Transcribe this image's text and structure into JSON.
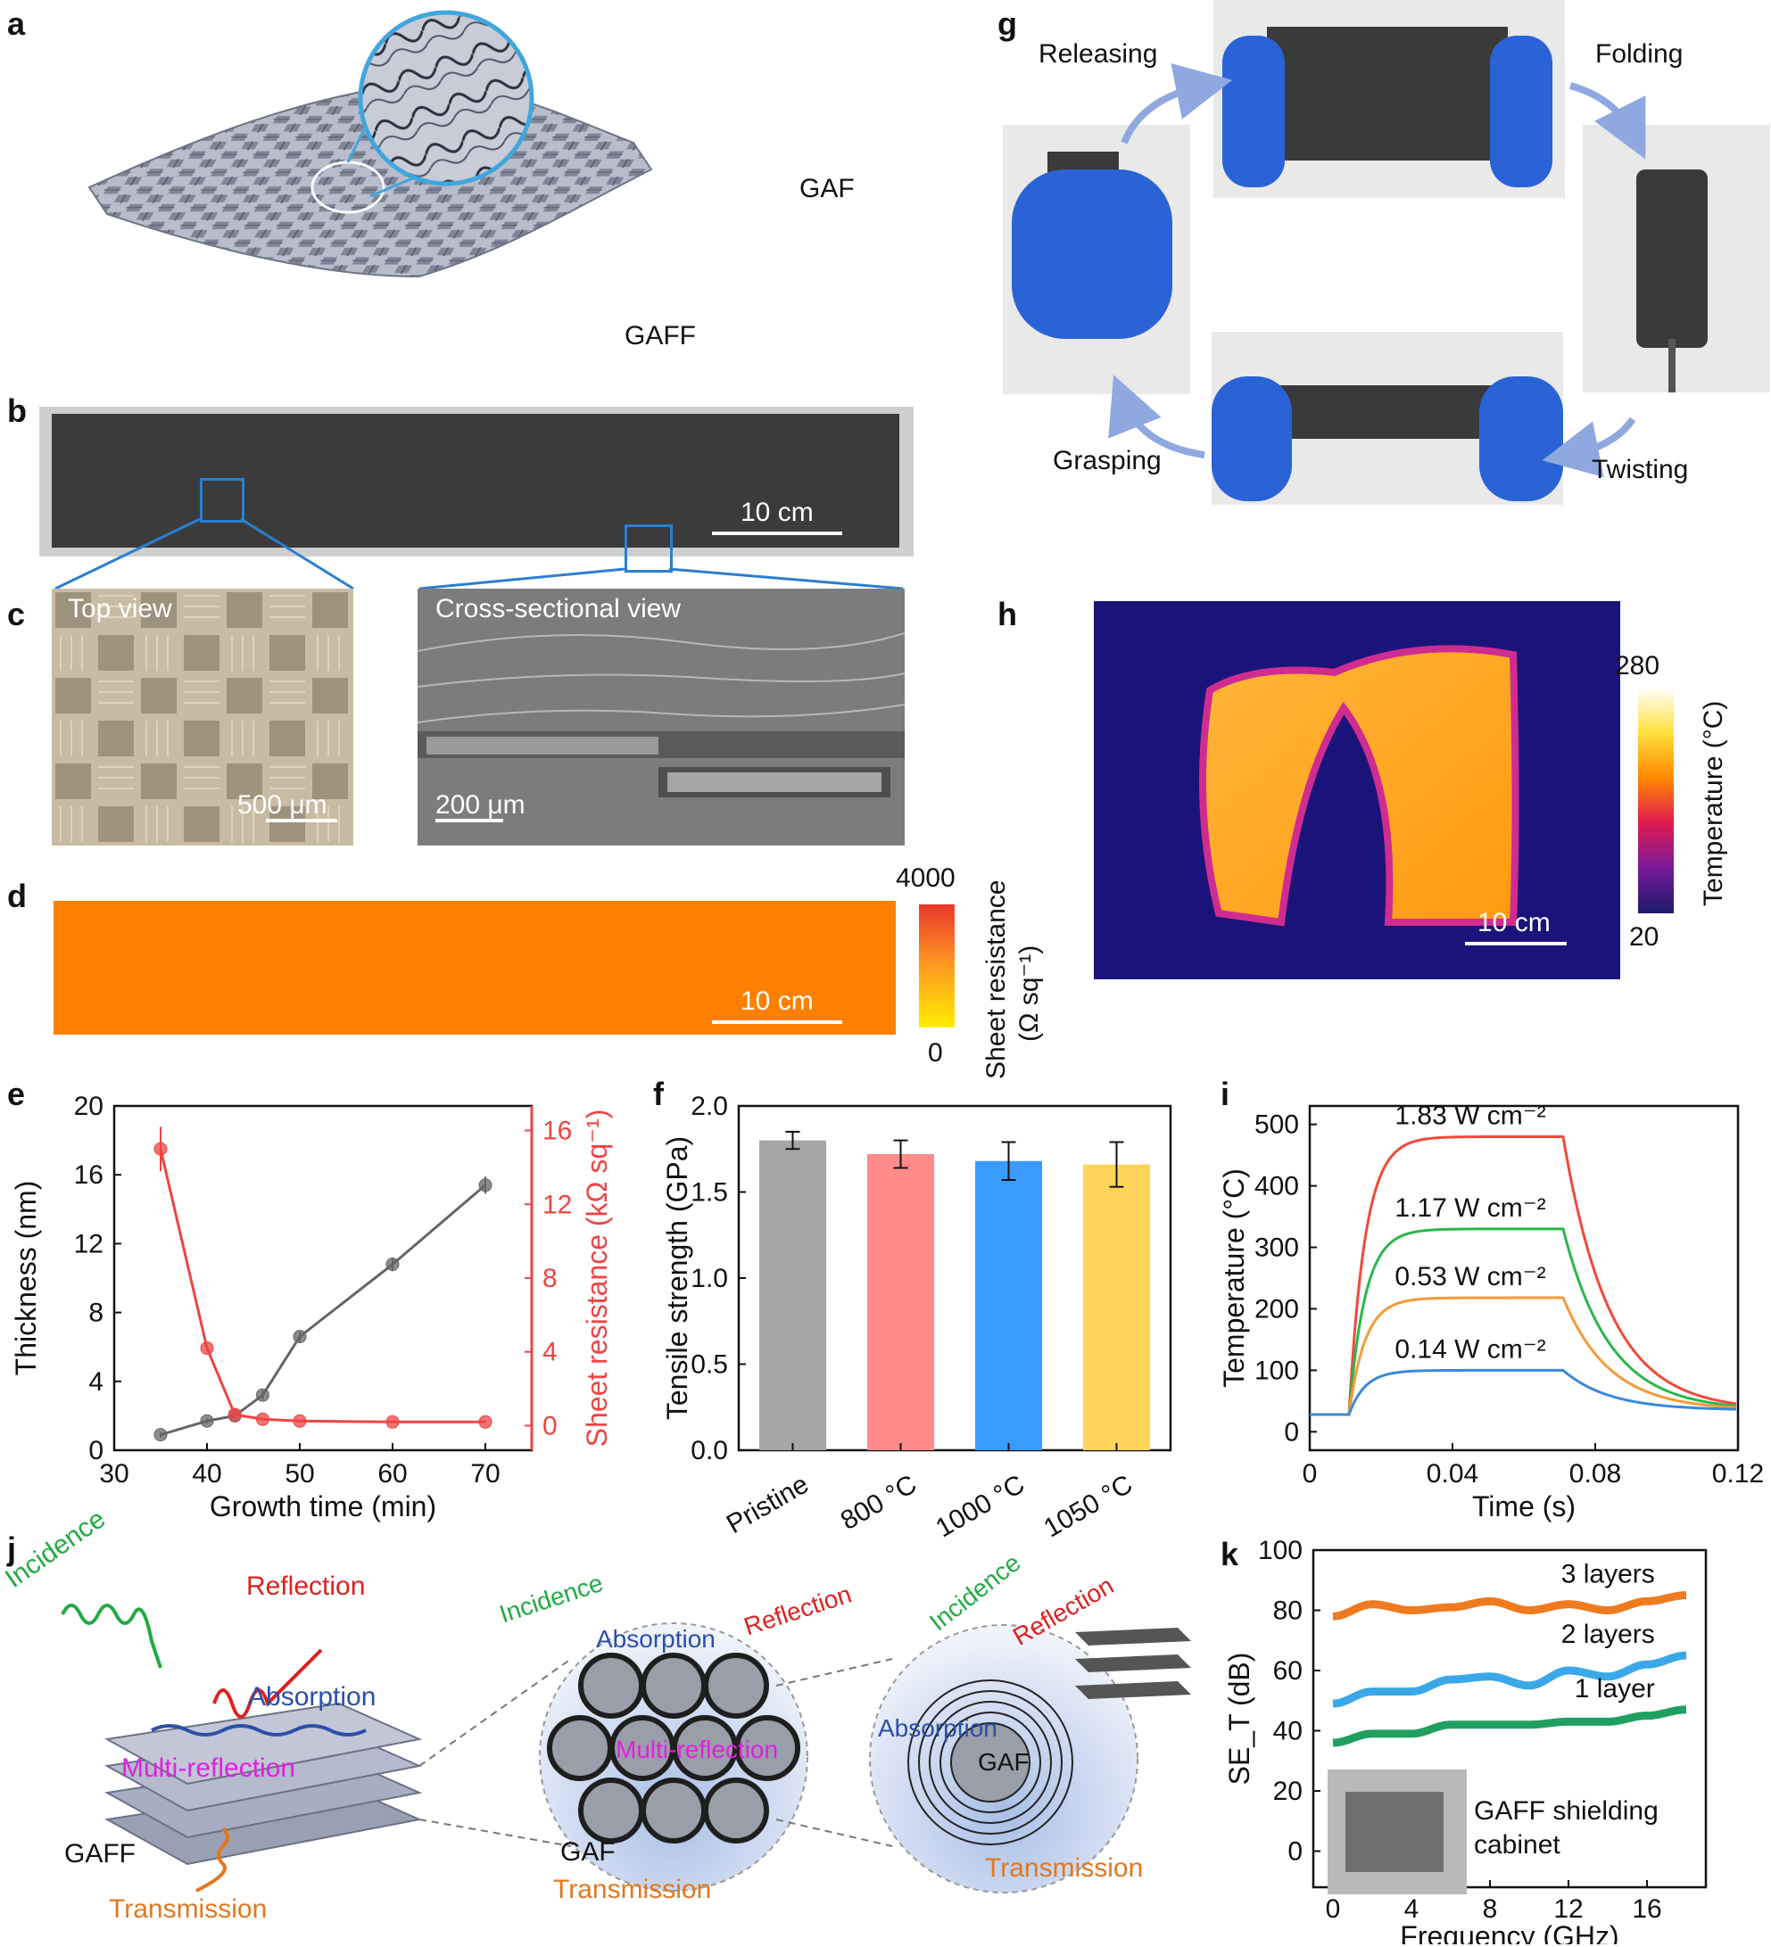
{
  "panels": {
    "a": {
      "label": "a",
      "gaf": "GAF",
      "gaff": "GAFF"
    },
    "b": {
      "label": "b",
      "scale": "10 cm"
    },
    "c": {
      "label": "c",
      "top_view": "Top view",
      "top_scale": "500 μm",
      "cross_view": "Cross-sectional view",
      "cross_scale": "200 μm"
    },
    "d": {
      "label": "d",
      "scale": "10 cm",
      "cbar_max": "4000",
      "cbar_min": "0",
      "cbar_title_1": "Sheet resistance",
      "cbar_title_2": "(Ω sq⁻¹)",
      "colors": {
        "map": "#ff8000",
        "cbar_top": "#e8382c",
        "cbar_bottom": "#ffee00"
      }
    },
    "g": {
      "label": "g",
      "releasing": "Releasing",
      "folding": "Folding",
      "grasping": "Grasping",
      "twisting": "Twisting",
      "arrow_color": "#8fa8e0"
    },
    "h": {
      "label": "h",
      "scale": "10 cm",
      "cbar_max": "280",
      "cbar_min": "20",
      "cbar_title": "Temperature (°C)"
    },
    "e": {
      "label": "e"
    },
    "f": {
      "label": "f"
    },
    "i": {
      "label": "i"
    },
    "j": {
      "label": "j",
      "incidence": "Incidence",
      "reflection": "Reflection",
      "absorption": "Absorption",
      "multi_reflection": "Multi-reflection",
      "gaff": "GAFF",
      "gaf": "GAF",
      "transmission": "Transmission",
      "colors": {
        "incidence": "#22aa44",
        "reflection": "#e02020",
        "absorption": "#2a4fa8",
        "multi": "#e020e0",
        "transmission": "#e07820"
      }
    },
    "k": {
      "label": "k",
      "inset_text_1": "GAFF shielding",
      "inset_text_2": "cabinet"
    }
  },
  "chart_data": [
    {
      "id": "e",
      "type": "line",
      "xlabel": "Growth time (min)",
      "ylabel": "Thickness (nm)",
      "ylabel_right": "Sheet resistance (kΩ sq⁻¹)",
      "xlim": [
        30,
        75
      ],
      "ylim": [
        0,
        20
      ],
      "ylim_right": [
        -1.333,
        17.333
      ],
      "xticks": [
        "30",
        "40",
        "50",
        "60",
        "70"
      ],
      "yticks": [
        "0",
        "4",
        "8",
        "12",
        "16",
        "20"
      ],
      "yticks_right": [
        "0",
        "4",
        "8",
        "12",
        "16"
      ],
      "series": [
        {
          "axis": "left",
          "color": "#666666",
          "x": [
            35,
            40,
            43,
            46,
            50,
            60,
            70
          ],
          "y": [
            0.9,
            1.7,
            2.0,
            3.2,
            6.6,
            10.8,
            15.4
          ],
          "err": [
            0.15,
            0.15,
            0.15,
            0.25,
            0.3,
            0.4,
            0.5
          ]
        },
        {
          "axis": "right",
          "color": "#ee4444",
          "x": [
            35,
            40,
            43,
            46,
            50,
            60,
            70
          ],
          "y": [
            15.0,
            4.2,
            0.6,
            0.35,
            0.25,
            0.2,
            0.2
          ],
          "err": [
            1.2,
            0.15,
            0.1,
            0.05,
            0.05,
            0.05,
            0.05
          ]
        }
      ]
    },
    {
      "id": "f",
      "type": "bar",
      "ylabel": "Tensile strength (GPa)",
      "ylim": [
        0,
        2.0
      ],
      "yticks": [
        "0.0",
        "0.5",
        "1.0",
        "1.5",
        "2.0"
      ],
      "categories": [
        "Pristine",
        "800 °C",
        "1000 °C",
        "1050 °C"
      ],
      "values": [
        1.8,
        1.72,
        1.68,
        1.66
      ],
      "errors": [
        0.05,
        0.08,
        0.11,
        0.13
      ],
      "colors": [
        "#a6a6a6",
        "#ff8b8b",
        "#3a9bff",
        "#ffd45a"
      ]
    },
    {
      "id": "i",
      "type": "line",
      "xlabel": "Time (s)",
      "ylabel": "Temperature (°C)",
      "xlim": [
        0,
        0.12
      ],
      "ylim": [
        -30,
        530
      ],
      "xticks": [
        "0",
        "0.04",
        "0.08",
        "0.12"
      ],
      "yticks": [
        "0",
        "100",
        "200",
        "300",
        "400",
        "500"
      ],
      "series": [
        {
          "name": "1.83 W cm⁻²",
          "color": "#f04a3a",
          "plateau": 480
        },
        {
          "name": "1.17 W cm⁻²",
          "color": "#2ab84a",
          "plateau": 330
        },
        {
          "name": "0.53 W cm⁻²",
          "color": "#f59a3a",
          "plateau": 218
        },
        {
          "name": "0.14 W cm⁻²",
          "color": "#3a8ad8",
          "plateau": 100
        }
      ],
      "t_on": 0.011,
      "t_off": 0.071,
      "baseline": 28
    },
    {
      "id": "k",
      "type": "line",
      "xlabel": "Frequency (GHz)",
      "ylabel": "SE_T (dB)",
      "xlim": [
        -1,
        19
      ],
      "ylim": [
        -12,
        100
      ],
      "xticks": [
        "0",
        "4",
        "8",
        "12",
        "16"
      ],
      "yticks": [
        "0",
        "20",
        "40",
        "60",
        "80",
        "100"
      ],
      "series": [
        {
          "name": "3 layers",
          "color": "#f07a20",
          "x": [
            0,
            2,
            4,
            6,
            8,
            10,
            12,
            14,
            16,
            18
          ],
          "y": [
            78,
            82,
            80,
            81,
            83,
            80,
            82,
            80,
            83,
            85
          ]
        },
        {
          "name": "2 layers",
          "color": "#3aa8e8",
          "x": [
            0,
            2,
            4,
            6,
            8,
            10,
            12,
            14,
            16,
            18
          ],
          "y": [
            49,
            53,
            53,
            57,
            58,
            55,
            60,
            58,
            62,
            65
          ]
        },
        {
          "name": "1 layer",
          "color": "#20a060",
          "x": [
            0,
            2,
            4,
            6,
            8,
            10,
            12,
            14,
            16,
            18
          ],
          "y": [
            36,
            39,
            39,
            42,
            42,
            42,
            43,
            43,
            45,
            47
          ]
        }
      ]
    }
  ]
}
